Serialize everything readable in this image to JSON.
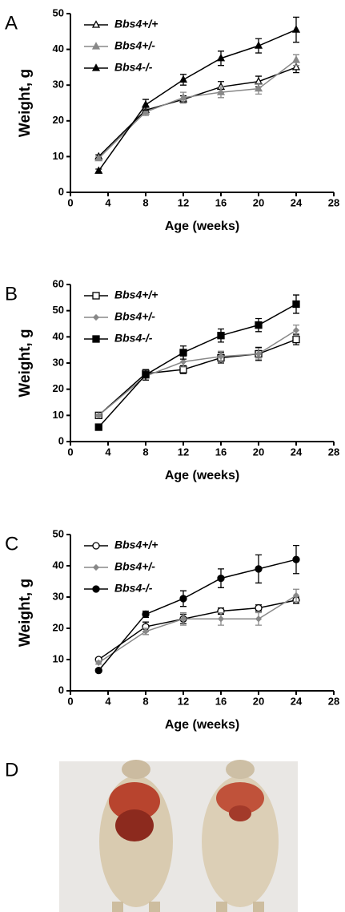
{
  "chart_data": [
    {
      "type": "line",
      "panel": "A",
      "ylabel": "Weight, g",
      "xlabel": "Age (weeks)",
      "x": [
        3,
        8,
        12,
        16,
        20,
        24
      ],
      "xlim": [
        0,
        28
      ],
      "xticks": [
        0,
        4,
        8,
        12,
        16,
        20,
        24,
        28
      ],
      "ylim": [
        0,
        50
      ],
      "yticks": [
        0,
        10,
        20,
        30,
        40,
        50
      ],
      "legend": "upper left",
      "series": [
        {
          "name": "Bbs4+/+",
          "color": "#000000",
          "marker": "triangle",
          "filled": false,
          "values": [
            10,
            23,
            26,
            29.5,
            31,
            35
          ],
          "errors": [
            0.5,
            1,
            1,
            1.5,
            1.5,
            1.5
          ]
        },
        {
          "name": "Bbs4+/-",
          "color": "#888888",
          "marker": "triangle",
          "filled": true,
          "values": [
            9.5,
            22.5,
            26.5,
            28,
            29,
            37
          ],
          "errors": [
            0.5,
            1,
            1.5,
            1.5,
            1.5,
            1.5
          ]
        },
        {
          "name": "Bbs4-/-",
          "color": "#000000",
          "marker": "triangle",
          "filled": true,
          "values": [
            6,
            24.5,
            31.5,
            37.5,
            41,
            45.5
          ],
          "errors": [
            0.5,
            1.5,
            1.5,
            2,
            2,
            3.5
          ]
        }
      ]
    },
    {
      "type": "line",
      "panel": "B",
      "ylabel": "Weight, g",
      "xlabel": "Age (weeks)",
      "x": [
        3,
        8,
        12,
        16,
        20,
        24
      ],
      "xlim": [
        0,
        28
      ],
      "xticks": [
        0,
        4,
        8,
        12,
        16,
        20,
        24,
        28
      ],
      "ylim": [
        0,
        60
      ],
      "yticks": [
        0,
        10,
        20,
        30,
        40,
        50,
        60
      ],
      "legend": "upper left",
      "series": [
        {
          "name": "Bbs4+/+",
          "color": "#000000",
          "marker": "square",
          "filled": false,
          "values": [
            10,
            26,
            27.5,
            32,
            33.5,
            39
          ],
          "errors": [
            0.5,
            1.5,
            1.5,
            2,
            2.5,
            2
          ]
        },
        {
          "name": "Bbs4+/-",
          "color": "#888888",
          "marker": "diamond",
          "filled": true,
          "values": [
            10,
            25,
            30.5,
            32.5,
            33.5,
            42.5
          ],
          "errors": [
            0.5,
            1.5,
            2,
            2,
            2,
            2
          ]
        },
        {
          "name": "Bbs4-/-",
          "color": "#000000",
          "marker": "square",
          "filled": true,
          "values": [
            5.5,
            25.5,
            34,
            40.5,
            44.5,
            52.5
          ],
          "errors": [
            0.5,
            2,
            2.5,
            2.5,
            2.5,
            3.5
          ]
        }
      ]
    },
    {
      "type": "line",
      "panel": "C",
      "ylabel": "Weight, g",
      "xlabel": "Age (weeks)",
      "x": [
        3,
        8,
        12,
        16,
        20,
        24
      ],
      "xlim": [
        0,
        28
      ],
      "xticks": [
        0,
        4,
        8,
        12,
        16,
        20,
        24,
        28
      ],
      "ylim": [
        0,
        50
      ],
      "yticks": [
        0,
        10,
        20,
        30,
        40,
        50
      ],
      "legend": "upper left",
      "series": [
        {
          "name": "Bbs4+/+",
          "color": "#000000",
          "marker": "circle",
          "filled": false,
          "values": [
            10,
            20.5,
            23,
            25.5,
            26.5,
            29
          ],
          "errors": [
            0.5,
            1.5,
            1.5,
            1,
            1,
            1
          ]
        },
        {
          "name": "Bbs4+/-",
          "color": "#888888",
          "marker": "diamond",
          "filled": true,
          "values": [
            9,
            19,
            23,
            23,
            23,
            30.5
          ],
          "errors": [
            0.5,
            1,
            2,
            2,
            2,
            2
          ]
        },
        {
          "name": "Bbs4-/-",
          "color": "#000000",
          "marker": "circle",
          "filled": true,
          "values": [
            6.5,
            24.5,
            29.5,
            36,
            39,
            42
          ],
          "errors": [
            0.5,
            1,
            2.5,
            3,
            4.5,
            4.5
          ]
        }
      ]
    }
  ],
  "photo_panel": {
    "label": "D"
  }
}
